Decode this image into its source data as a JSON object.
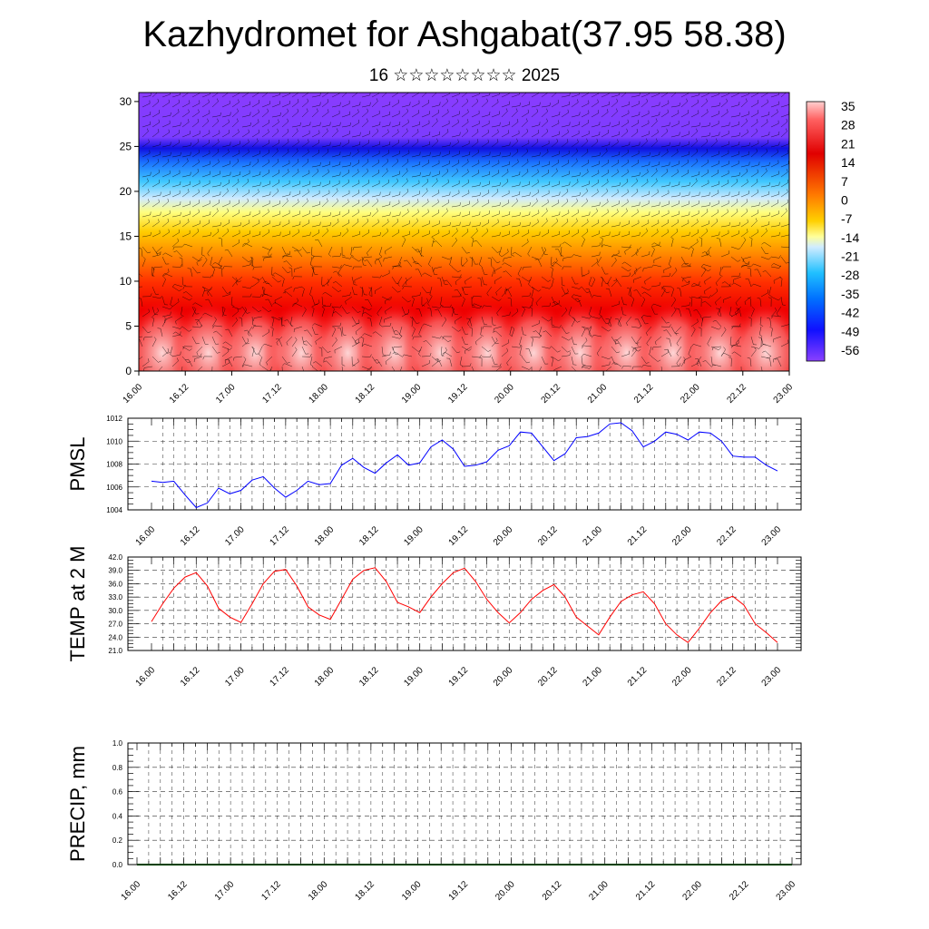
{
  "header": {
    "title": "Kazhydromet for Ashgabat(37.95 58.38)",
    "subtitle": "16 ☆☆☆☆☆☆☆☆ 2025"
  },
  "chart_data": [
    {
      "type": "heatmap",
      "description_key": "cross-section",
      "x_tick_labels": [
        "16.00",
        "16.12",
        "17.00",
        "17.12",
        "18.00",
        "18.12",
        "19.00",
        "19.12",
        "20.00",
        "20.12",
        "21.00",
        "21.12",
        "22.00",
        "22.12",
        "23.00"
      ],
      "y_ticks": [
        0,
        5,
        10,
        15,
        20,
        25,
        30
      ],
      "ylim": [
        0,
        31
      ],
      "colorbar_labels": [
        "35",
        "28",
        "21",
        "14",
        "7",
        "0",
        "-7",
        "-14",
        "-21",
        "-28",
        "-35",
        "-42",
        "-49",
        "-56"
      ],
      "colorbar_range": [
        -63,
        40
      ],
      "has_wind_barbs": true
    },
    {
      "type": "line",
      "ylabel": "PMSL",
      "x_tick_labels": [
        "16.00",
        "16.12",
        "17.00",
        "17.12",
        "18.00",
        "18.12",
        "19.00",
        "19.12",
        "20.00",
        "20.12",
        "21.00",
        "21.12",
        "22.00",
        "22.12",
        "23.00"
      ],
      "y_tick_labels": [
        "1004",
        "1006",
        "1008",
        "1010",
        "1012"
      ],
      "ylim": [
        1004,
        1012
      ],
      "grid": true,
      "series": [
        {
          "color": "#0000ff",
          "values": [
            1006.5,
            1006.4,
            1006.5,
            1005.3,
            1004.2,
            1004.6,
            1005.9,
            1005.4,
            1005.7,
            1006.6,
            1006.9,
            1005.9,
            1005.1,
            1005.7,
            1006.5,
            1006.2,
            1006.3,
            1007.9,
            1008.5,
            1007.7,
            1007.2,
            1008.1,
            1008.8,
            1007.9,
            1008.1,
            1009.5,
            1010.1,
            1009.3,
            1007.8,
            1007.9,
            1008.2,
            1009.2,
            1009.6,
            1010.8,
            1010.7,
            1009.5,
            1008.3,
            1008.9,
            1010.3,
            1010.4,
            1010.7,
            1011.5,
            1011.6,
            1010.9,
            1009.5,
            1010.0,
            1010.8,
            1010.6,
            1010.1,
            1010.8,
            1010.7,
            1010.0,
            1008.7,
            1008.6,
            1008.6,
            1007.9,
            1007.4
          ]
        }
      ]
    },
    {
      "type": "line",
      "ylabel": "TEMP at 2 M",
      "x_tick_labels": [
        "16.00",
        "16.12",
        "17.00",
        "17.12",
        "18.00",
        "18.12",
        "19.00",
        "19.12",
        "20.00",
        "20.12",
        "21.00",
        "21.12",
        "22.00",
        "22.12",
        "23.00"
      ],
      "y_tick_labels": [
        "21.0",
        "24.0",
        "27.0",
        "30.0",
        "33.0",
        "36.0",
        "39.0",
        "42.0"
      ],
      "ylim": [
        21,
        42
      ],
      "grid": true,
      "series": [
        {
          "color": "#ff0000",
          "values": [
            27.5,
            31.5,
            35.0,
            37.5,
            38.5,
            35.5,
            30.5,
            28.5,
            27.3,
            31.5,
            36.0,
            38.8,
            39.2,
            35.5,
            30.8,
            29.0,
            28.0,
            32.5,
            37.0,
            39.0,
            39.6,
            36.5,
            31.8,
            30.8,
            29.5,
            33.0,
            36.0,
            38.5,
            39.5,
            36.5,
            32.5,
            29.5,
            27.2,
            29.5,
            32.5,
            34.5,
            35.8,
            33.0,
            28.5,
            26.5,
            24.5,
            28.5,
            32.0,
            33.5,
            34.2,
            31.5,
            27.0,
            24.5,
            22.8,
            26.0,
            29.5,
            32.2,
            33.2,
            31.2,
            27.0,
            25.0,
            22.8
          ]
        }
      ]
    },
    {
      "type": "line",
      "ylabel": "PRECIP, mm",
      "x_tick_labels": [
        "16.00",
        "16.12",
        "17.00",
        "17.12",
        "18.00",
        "18.12",
        "19.00",
        "19.12",
        "20.00",
        "20.12",
        "21.00",
        "21.12",
        "22.00",
        "22.12",
        "23.00"
      ],
      "y_tick_labels": [
        "0.0",
        "0.2",
        "0.4",
        "0.6",
        "0.8",
        "1.0"
      ],
      "ylim": [
        0,
        1
      ],
      "grid": true,
      "series": [
        {
          "color": "#008000",
          "values": [
            0,
            0,
            0,
            0,
            0,
            0,
            0,
            0,
            0,
            0,
            0,
            0,
            0,
            0,
            0,
            0,
            0,
            0,
            0,
            0,
            0,
            0,
            0,
            0,
            0,
            0,
            0,
            0,
            0,
            0,
            0,
            0,
            0,
            0,
            0,
            0,
            0,
            0,
            0,
            0,
            0,
            0,
            0,
            0,
            0,
            0,
            0,
            0,
            0,
            0,
            0,
            0,
            0,
            0,
            0,
            0,
            0,
            0,
            0
          ]
        }
      ]
    }
  ]
}
